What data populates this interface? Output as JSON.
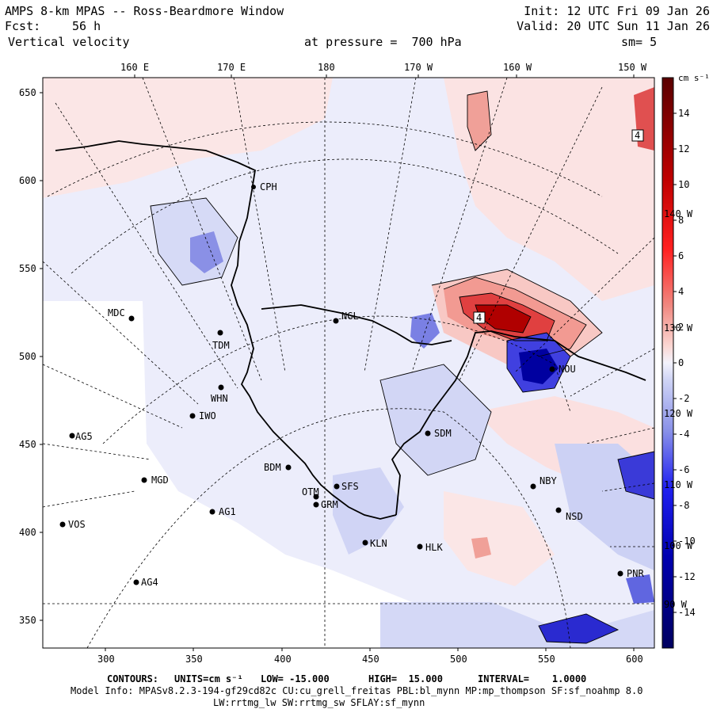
{
  "header": {
    "title": "AMPS 8-km MPAS -- Ross-Beardmore Window",
    "fcst_label": "Fcst:",
    "fcst_value": "56 h",
    "field": "Vertical velocity",
    "init": "Init: 12 UTC Fri 09 Jan 26",
    "valid": "Valid: 20 UTC Sun 11 Jan 26",
    "pressure": "at pressure =  700 hPa",
    "smoothing": "sm= 5"
  },
  "top_axis": [
    "160 E",
    "170 E",
    "180",
    "170 W",
    "160 W",
    "150 W"
  ],
  "left_axis": [
    "650",
    "600",
    "550",
    "500",
    "450",
    "400",
    "350"
  ],
  "bottom_axis": [
    "300",
    "350",
    "400",
    "450",
    "500",
    "550",
    "600"
  ],
  "meridian_labels": [
    "140 W",
    "130 W",
    "120 W",
    "110 W",
    "100 W",
    "90 W"
  ],
  "stations": [
    {
      "id": "CPH"
    },
    {
      "id": "NGL"
    },
    {
      "id": "MDC"
    },
    {
      "id": "TDM"
    },
    {
      "id": "WHN"
    },
    {
      "id": "IWO"
    },
    {
      "id": "AG5"
    },
    {
      "id": "SDM"
    },
    {
      "id": "BDM"
    },
    {
      "id": "MGD"
    },
    {
      "id": "SFS"
    },
    {
      "id": "OTM"
    },
    {
      "id": "GRM"
    },
    {
      "id": "AG1"
    },
    {
      "id": "NBY"
    },
    {
      "id": "NSD"
    },
    {
      "id": "VOS"
    },
    {
      "id": "KLN"
    },
    {
      "id": "HLK"
    },
    {
      "id": "AG4"
    },
    {
      "id": "PNR"
    },
    {
      "id": "NOU"
    }
  ],
  "contour_labels": [
    "4",
    "4"
  ],
  "colorbar": {
    "units": "cm s⁻¹",
    "ticks": [
      "14",
      "12",
      "10",
      "8",
      "6",
      "4",
      "2",
      "0",
      "-2",
      "-4",
      "-6",
      "-8",
      "-10",
      "-12",
      "-14"
    ],
    "colors": {
      "positive_max": "#5a0000",
      "positive_mid": "#e00000",
      "positive_low": "#fbd0cc",
      "neutral": "#eeeefc",
      "negative_low": "#c8cdf4",
      "negative_mid": "#0000d8",
      "negative_max": "#000068"
    }
  },
  "footer": {
    "contours_label": "CONTOURS:",
    "units": "UNITS=cm s⁻¹",
    "low": "LOW= -15.000",
    "high": "HIGH=  15.000",
    "interval": "INTERVAL=    1.0000",
    "model_info": "Model Info: MPASv8.2.3-194-gf29cd82c CU:cu_grell_freitas PBL:bl_mynn MP:mp_thompson SF:sf_noahmp 8.0",
    "physics": "LW:rrtmg_lw SW:rrtmg_sw SFLAY:sf_mynn"
  }
}
